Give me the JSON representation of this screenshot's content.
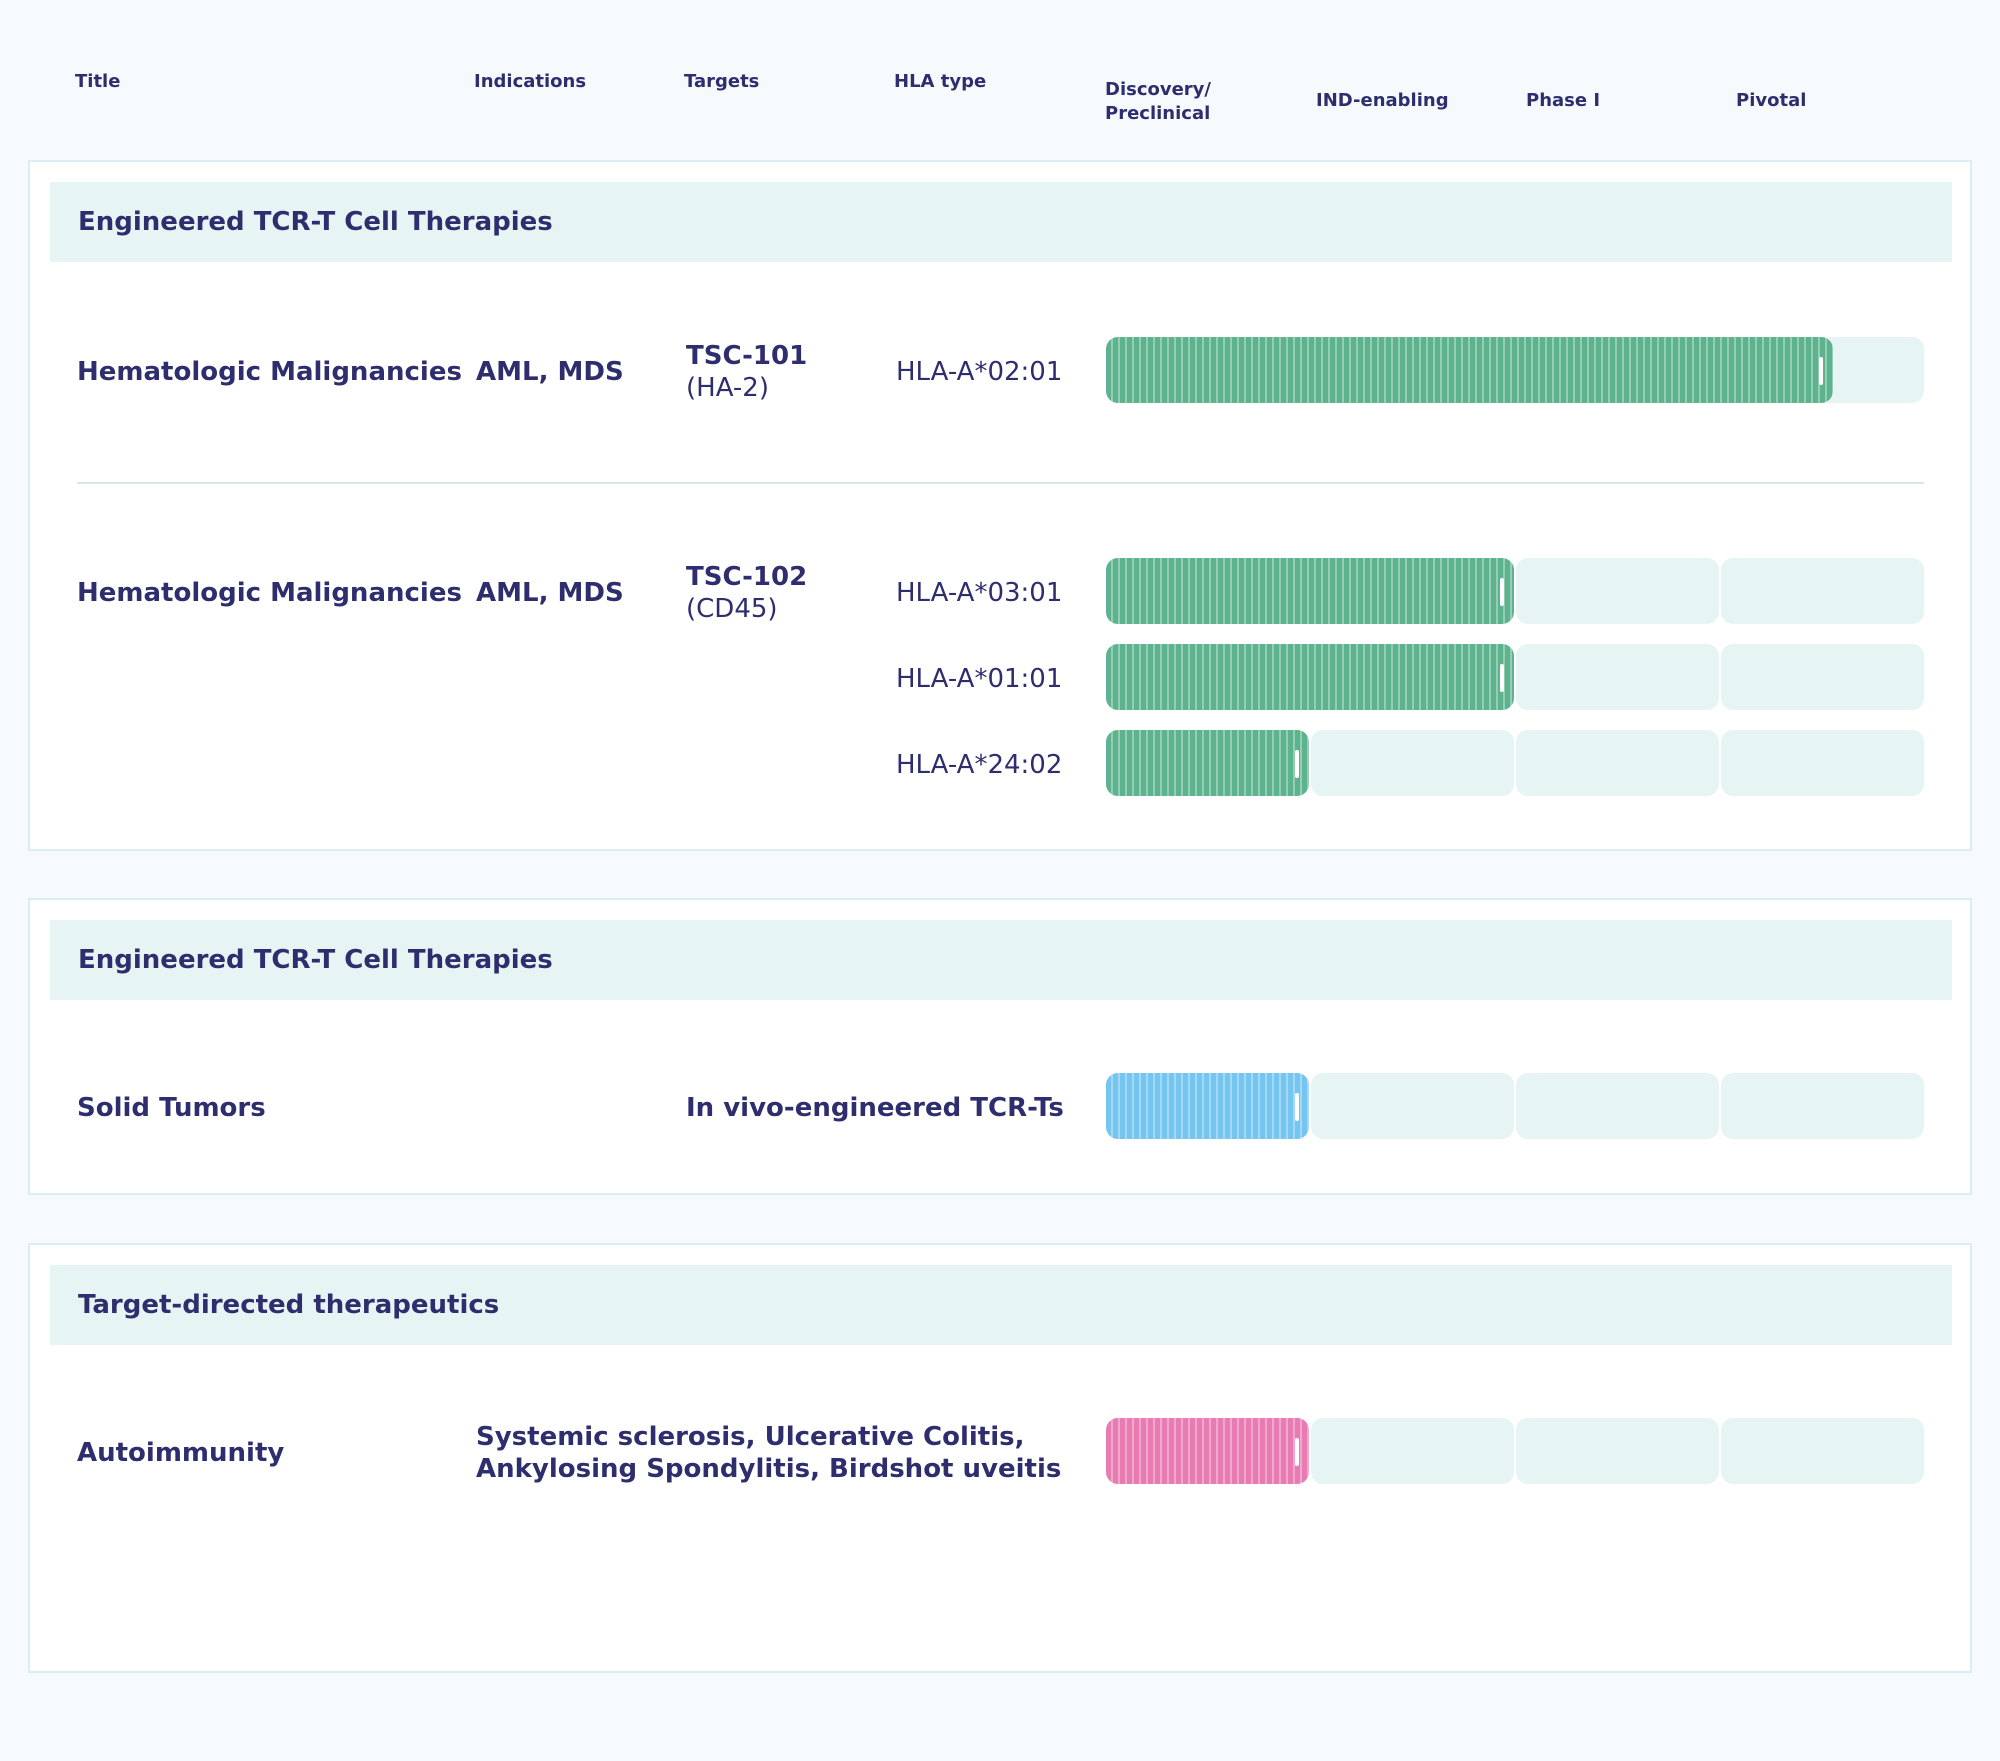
{
  "columns": {
    "title": "Title",
    "indications": "Indications",
    "targets": "Targets",
    "hla": "HLA type",
    "discovery_line1": "Discovery/",
    "discovery_line2": "Preclinical",
    "ind": "IND-enabling",
    "phase1": "Phase I",
    "pivotal": "Pivotal"
  },
  "sections": [
    {
      "title": "Engineered TCR-T Cell Therapies",
      "rows": [
        {
          "title": "Hematologic Malignancies",
          "indications": "AML, MDS",
          "target_name": "TSC-101",
          "target_sub": "(HA-2)",
          "programs": [
            {
              "hla": "HLA-A*02:01",
              "progress_stages": 3.55,
              "color": "#5db38e"
            }
          ]
        },
        {
          "title": "Hematologic Malignancies",
          "indications": "AML, MDS",
          "target_name": "TSC-102",
          "target_sub": "(CD45)",
          "programs": [
            {
              "hla": "HLA-A*03:01",
              "progress_stages": 2.0,
              "color": "#5db38e"
            },
            {
              "hla": "HLA-A*01:01",
              "progress_stages": 2.0,
              "color": "#5db38e"
            },
            {
              "hla": "HLA-A*24:02",
              "progress_stages": 1.0,
              "color": "#5db38e"
            }
          ]
        }
      ]
    },
    {
      "title": "Engineered TCR-T Cell Therapies",
      "rows": [
        {
          "title": "Solid Tumors",
          "targets": "In vivo-engineered TCR-Ts",
          "progress_stages": 1.0,
          "color": "#74c5f0"
        }
      ]
    },
    {
      "title": "Target-directed therapeutics",
      "rows": [
        {
          "title": "Autoimmunity",
          "indications_line1": "Systemic sclerosis, Ulcerative Colitis,",
          "indications_line2": "Ankylosing Spondylitis, Birdshot uveitis",
          "progress_stages": 1.0,
          "color": "#e87bb2"
        }
      ]
    }
  ]
}
